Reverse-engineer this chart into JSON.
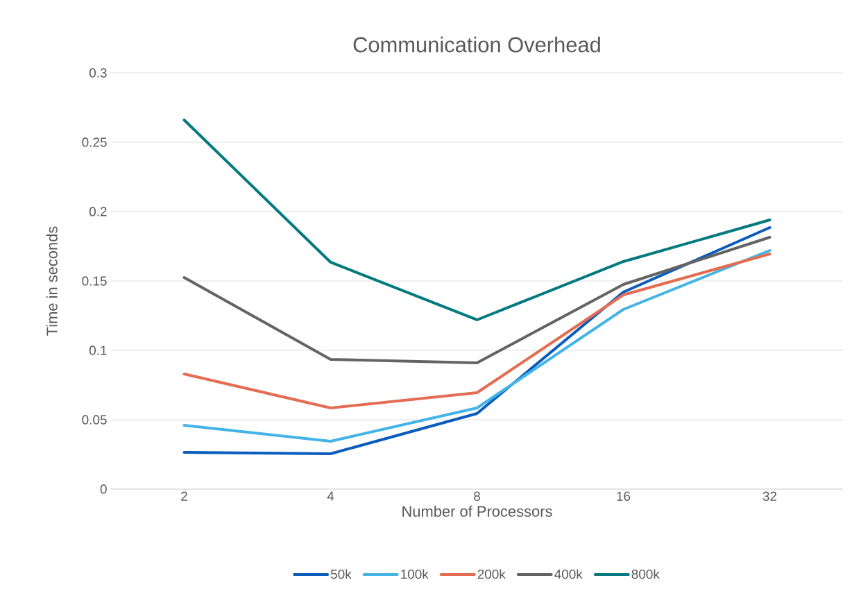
{
  "chart_data": {
    "type": "line",
    "title": "Communication Overhead",
    "xlabel": "Number of Processors",
    "ylabel": "Time in seconds",
    "categories": [
      "2",
      "4",
      "8",
      "16",
      "32"
    ],
    "series": [
      {
        "name": "50k",
        "color": "#0b5cbc",
        "values": [
          0.0265,
          0.0255,
          0.0545,
          0.142,
          0.1885
        ]
      },
      {
        "name": "100k",
        "color": "#44b4e6",
        "values": [
          0.046,
          0.0345,
          0.0585,
          0.1295,
          0.172
        ]
      },
      {
        "name": "200k",
        "color": "#e46c52",
        "values": [
          0.083,
          0.0585,
          0.0695,
          0.14,
          0.1695
        ]
      },
      {
        "name": "400k",
        "color": "#646464",
        "values": [
          0.1525,
          0.0935,
          0.091,
          0.1475,
          0.1815
        ]
      },
      {
        "name": "800k",
        "color": "#037a7f",
        "values": [
          0.266,
          0.1635,
          0.122,
          0.164,
          0.194
        ]
      }
    ],
    "ylim": [
      0,
      0.3
    ],
    "yticks": [
      0,
      0.05,
      0.1,
      0.15,
      0.2,
      0.25,
      0.3
    ],
    "grid": "y",
    "legend": "bottom",
    "marker": "none",
    "line_style": "solid"
  }
}
